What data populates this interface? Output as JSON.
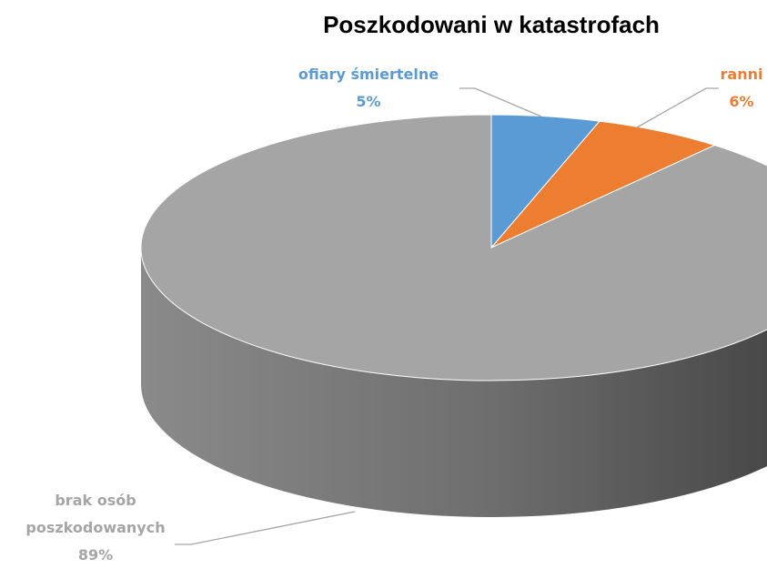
{
  "chart_data": {
    "type": "pie",
    "title": "Poszkodowani w katastrofach",
    "categories": [
      "ofiary śmiertelne",
      "ranni",
      "brak osób poszkodowanych"
    ],
    "values": [
      5,
      6,
      89
    ],
    "value_labels": [
      "5%",
      "6%",
      "89%"
    ],
    "colors": [
      "#5b9bd5",
      "#ed7d31",
      "#a5a5a5"
    ]
  }
}
